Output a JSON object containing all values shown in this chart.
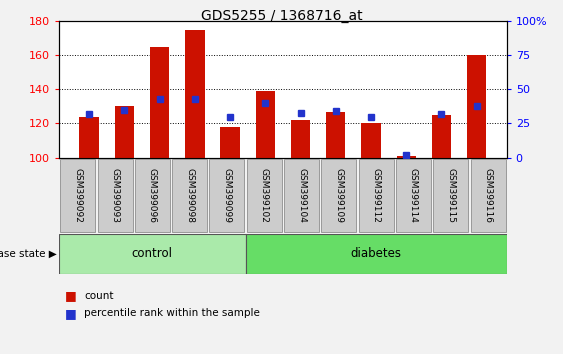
{
  "title": "GDS5255 / 1368716_at",
  "samples": [
    "GSM399092",
    "GSM399093",
    "GSM399096",
    "GSM399098",
    "GSM399099",
    "GSM399102",
    "GSM399104",
    "GSM399109",
    "GSM399112",
    "GSM399114",
    "GSM399115",
    "GSM399116"
  ],
  "bar_tops": [
    124,
    130,
    165,
    175,
    118,
    139,
    122,
    127,
    120,
    101,
    125,
    160
  ],
  "bar_base": 100,
  "percentile_values": [
    32,
    35,
    43,
    43,
    30,
    40,
    33,
    34,
    30,
    2,
    32,
    38
  ],
  "ylim_left": [
    100,
    180
  ],
  "ylim_right": [
    0,
    100
  ],
  "yticks_left": [
    100,
    120,
    140,
    160,
    180
  ],
  "yticks_right": [
    0,
    25,
    50,
    75,
    100
  ],
  "ytick_labels_right": [
    "0",
    "25",
    "50",
    "75",
    "100%"
  ],
  "bar_color": "#cc1100",
  "dot_color": "#2233cc",
  "n_control": 5,
  "n_diabetes": 7,
  "control_label": "control",
  "diabetes_label": "diabetes",
  "disease_state_label": "disease state",
  "legend_count_label": "count",
  "legend_pct_label": "percentile rank within the sample",
  "fig_bg": "#f2f2f2",
  "plot_bg": "#ffffff",
  "tickbox_bg": "#cccccc",
  "tickbox_edge": "#999999",
  "control_color": "#aaeaaa",
  "diabetes_color": "#66dd66",
  "grid_yticks": [
    120,
    140,
    160
  ]
}
